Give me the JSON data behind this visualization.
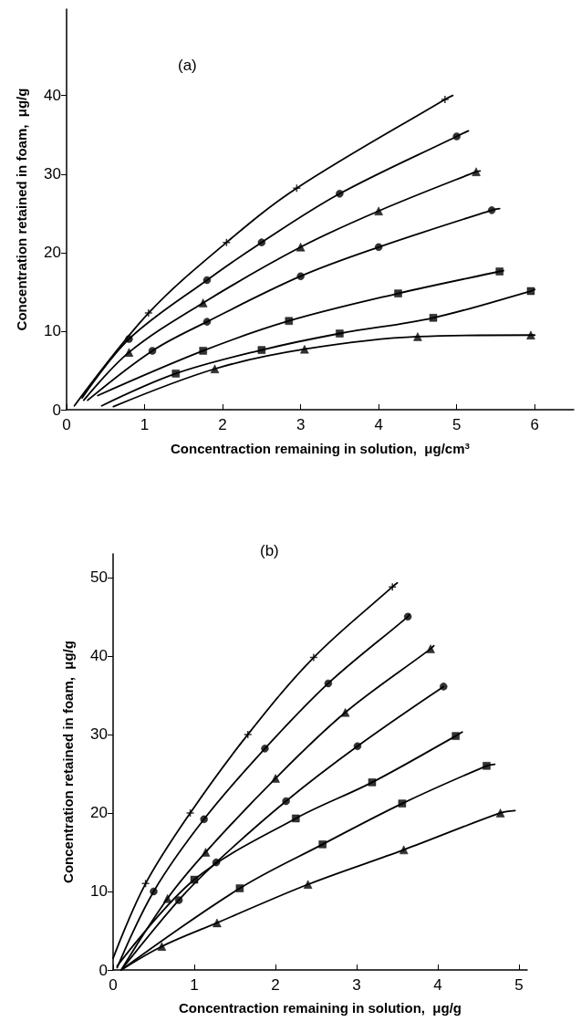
{
  "chart_data": [
    {
      "type": "scatter",
      "title": "(a)",
      "xlabel": "Concentraction remaining in solution,  μg/cm$^{3}$",
      "ylabel": "Concentration retained in foam,  μg/g",
      "xlim": [
        0,
        6.5
      ],
      "ylim": [
        0,
        51
      ],
      "xticks": [
        0,
        1,
        2,
        3,
        4,
        5,
        6
      ],
      "yticks": [
        0,
        10,
        20,
        30,
        40
      ],
      "grid": false,
      "series": [
        {
          "type": "line",
          "marker": "none",
          "color": "#000000",
          "x": [
            0.1,
            1.05,
            2.05,
            2.95,
            4.85,
            4.95
          ],
          "values": [
            0.5,
            12.3,
            21.3,
            28.2,
            39.5,
            40
          ]
        },
        {
          "type": "line",
          "marker": "none",
          "color": "#000000",
          "x": [
            0.2,
            0.8,
            1.8,
            2.5,
            3.5,
            5.0,
            5.15
          ],
          "values": [
            1.5,
            9,
            16.5,
            21.3,
            27.5,
            34.8,
            35.5
          ]
        },
        {
          "type": "line",
          "marker": "none",
          "color": "#000000",
          "x": [
            0.22,
            0.8,
            1.75,
            3.0,
            4.0,
            5.25,
            5.3
          ],
          "values": [
            1.2,
            7.3,
            13.6,
            20.7,
            25.3,
            30.3,
            30.4
          ]
        },
        {
          "type": "line",
          "marker": "none",
          "color": "#000000",
          "x": [
            0.27,
            1.1,
            1.8,
            3.0,
            4.0,
            5.45,
            5.55
          ],
          "values": [
            1.2,
            7.5,
            11.2,
            17.0,
            20.7,
            25.4,
            25.6
          ]
        },
        {
          "type": "line",
          "marker": "none",
          "color": "#000000",
          "x": [
            0.4,
            1.75,
            2.85,
            4.25,
            5.55,
            5.6
          ],
          "values": [
            1.8,
            7.5,
            11.3,
            14.8,
            17.6,
            17.7
          ]
        },
        {
          "type": "line",
          "marker": "none",
          "color": "#000000",
          "x": [
            0.45,
            1.4,
            2.5,
            3.5,
            4.7,
            5.95,
            6.0
          ],
          "values": [
            0.5,
            4.6,
            7.6,
            9.7,
            11.7,
            15.1,
            15.3
          ]
        },
        {
          "type": "line",
          "marker": "none",
          "color": "#000000",
          "x": [
            0.6,
            1.9,
            3.05,
            4.5,
            5.95,
            6.0
          ],
          "values": [
            0.4,
            5.2,
            7.7,
            9.3,
            9.5,
            9.5
          ]
        },
        {
          "type": "scatter",
          "marker": "cross",
          "color": "#000000",
          "x": [
            1.05,
            2.05,
            2.95,
            4.85
          ],
          "values": [
            12.3,
            21.3,
            28.2,
            39.5
          ]
        },
        {
          "type": "scatter",
          "marker": "circle",
          "color": "#000000",
          "x": [
            0.8,
            1.8,
            2.5,
            3.5,
            5.0
          ],
          "values": [
            9,
            16.5,
            21.3,
            27.5,
            34.8
          ]
        },
        {
          "type": "scatter",
          "marker": "triangle",
          "color": "#000000",
          "x": [
            0.8,
            1.75,
            3.0,
            4.0,
            5.25
          ],
          "values": [
            7.3,
            13.6,
            20.7,
            25.3,
            30.3
          ]
        },
        {
          "type": "scatter",
          "marker": "circle",
          "color": "#000000",
          "x": [
            1.1,
            1.8,
            3.0,
            4.0,
            5.45
          ],
          "values": [
            7.5,
            11.2,
            17.0,
            20.7,
            25.4
          ]
        },
        {
          "type": "scatter",
          "marker": "square",
          "color": "#000000",
          "x": [
            1.75,
            2.85,
            4.25,
            5.55
          ],
          "values": [
            7.5,
            11.3,
            14.8,
            17.6
          ]
        },
        {
          "type": "scatter",
          "marker": "square",
          "color": "#000000",
          "x": [
            1.4,
            2.5,
            3.5,
            4.7,
            5.95
          ],
          "values": [
            4.6,
            7.6,
            9.7,
            11.7,
            15.1
          ]
        },
        {
          "type": "scatter",
          "marker": "triangle",
          "color": "#000000",
          "x": [
            1.9,
            3.05,
            4.5,
            5.95
          ],
          "values": [
            5.2,
            7.7,
            9.3,
            9.5
          ]
        }
      ]
    },
    {
      "type": "scatter",
      "title": "(b)",
      "xlabel": "Concentraction remaining in solution,  μg/g",
      "ylabel": "Concentration retained in foam,  μg/g",
      "xlim": [
        0,
        5.1
      ],
      "ylim": [
        0,
        53
      ],
      "xticks": [
        0,
        1,
        2,
        3,
        4,
        5
      ],
      "yticks": [
        0,
        10,
        20,
        30,
        40,
        50
      ],
      "grid": false,
      "series": [
        {
          "type": "line",
          "marker": "none",
          "color": "#000000",
          "x": [
            0,
            0.4,
            0.95,
            1.66,
            2.47,
            3.44,
            3.5
          ],
          "values": [
            1.5,
            11.0,
            20.0,
            30.0,
            39.8,
            48.8,
            49.3
          ]
        },
        {
          "type": "line",
          "marker": "none",
          "color": "#000000",
          "x": [
            0.05,
            0.5,
            1.12,
            1.87,
            2.65,
            3.63,
            3.65
          ],
          "values": [
            0.3,
            10.0,
            19.2,
            28.2,
            36.5,
            45.0,
            45.3
          ]
        },
        {
          "type": "line",
          "marker": "none",
          "color": "#000000",
          "x": [
            0.1,
            0.67,
            1.14,
            2.0,
            2.86,
            3.91,
            3.95
          ],
          "values": [
            0,
            9.1,
            15.0,
            24.4,
            32.8,
            40.9,
            41.3
          ]
        },
        {
          "type": "line",
          "marker": "none",
          "color": "#000000",
          "x": [
            0.1,
            0.81,
            1.27,
            2.13,
            3.01,
            4.07
          ],
          "values": [
            0,
            8.9,
            13.7,
            21.5,
            28.5,
            36.1
          ]
        },
        {
          "type": "line",
          "marker": "none",
          "color": "#000000",
          "x": [
            0.05,
            1.0,
            2.25,
            3.19,
            4.22,
            4.3
          ],
          "values": [
            0.5,
            11.5,
            19.3,
            23.9,
            29.8,
            30.3
          ]
        },
        {
          "type": "line",
          "marker": "none",
          "color": "#000000",
          "x": [
            0.1,
            1.56,
            2.58,
            3.56,
            4.6,
            4.7
          ],
          "values": [
            0,
            10.4,
            16.0,
            21.2,
            26.0,
            26.2
          ]
        },
        {
          "type": "line",
          "marker": "none",
          "color": "#000000",
          "x": [
            0.1,
            0.6,
            1.28,
            2.4,
            3.58,
            4.77,
            4.95
          ],
          "values": [
            0,
            3.0,
            6.0,
            10.9,
            15.3,
            20.0,
            20.3
          ]
        },
        {
          "type": "scatter",
          "marker": "cross",
          "color": "#000000",
          "x": [
            0.4,
            0.95,
            1.66,
            2.47,
            3.44
          ],
          "values": [
            11.0,
            20.0,
            30.0,
            39.8,
            48.8
          ]
        },
        {
          "type": "scatter",
          "marker": "circle",
          "color": "#000000",
          "x": [
            0.5,
            1.12,
            1.87,
            2.65,
            3.63
          ],
          "values": [
            10.0,
            19.2,
            28.2,
            36.5,
            45.0
          ]
        },
        {
          "type": "scatter",
          "marker": "triangle",
          "color": "#000000",
          "x": [
            0.67,
            1.14,
            2.0,
            2.86,
            3.91
          ],
          "values": [
            9.1,
            15.0,
            24.4,
            32.8,
            40.9
          ]
        },
        {
          "type": "scatter",
          "marker": "circle",
          "color": "#000000",
          "x": [
            0.81,
            1.27,
            2.13,
            3.01,
            4.07
          ],
          "values": [
            8.9,
            13.7,
            21.5,
            28.5,
            36.1
          ]
        },
        {
          "type": "scatter",
          "marker": "square",
          "color": "#000000",
          "x": [
            1.0,
            2.25,
            3.19,
            4.22
          ],
          "values": [
            11.5,
            19.3,
            23.9,
            29.8
          ]
        },
        {
          "type": "scatter",
          "marker": "square",
          "color": "#000000",
          "x": [
            1.56,
            2.58,
            3.56,
            4.6
          ],
          "values": [
            10.4,
            16.0,
            21.2,
            26.0
          ]
        },
        {
          "type": "scatter",
          "marker": "triangle",
          "color": "#000000",
          "x": [
            0.6,
            1.28,
            2.4,
            3.58,
            4.77
          ],
          "values": [
            3.0,
            6.0,
            10.9,
            15.3,
            20.0
          ]
        }
      ]
    }
  ]
}
